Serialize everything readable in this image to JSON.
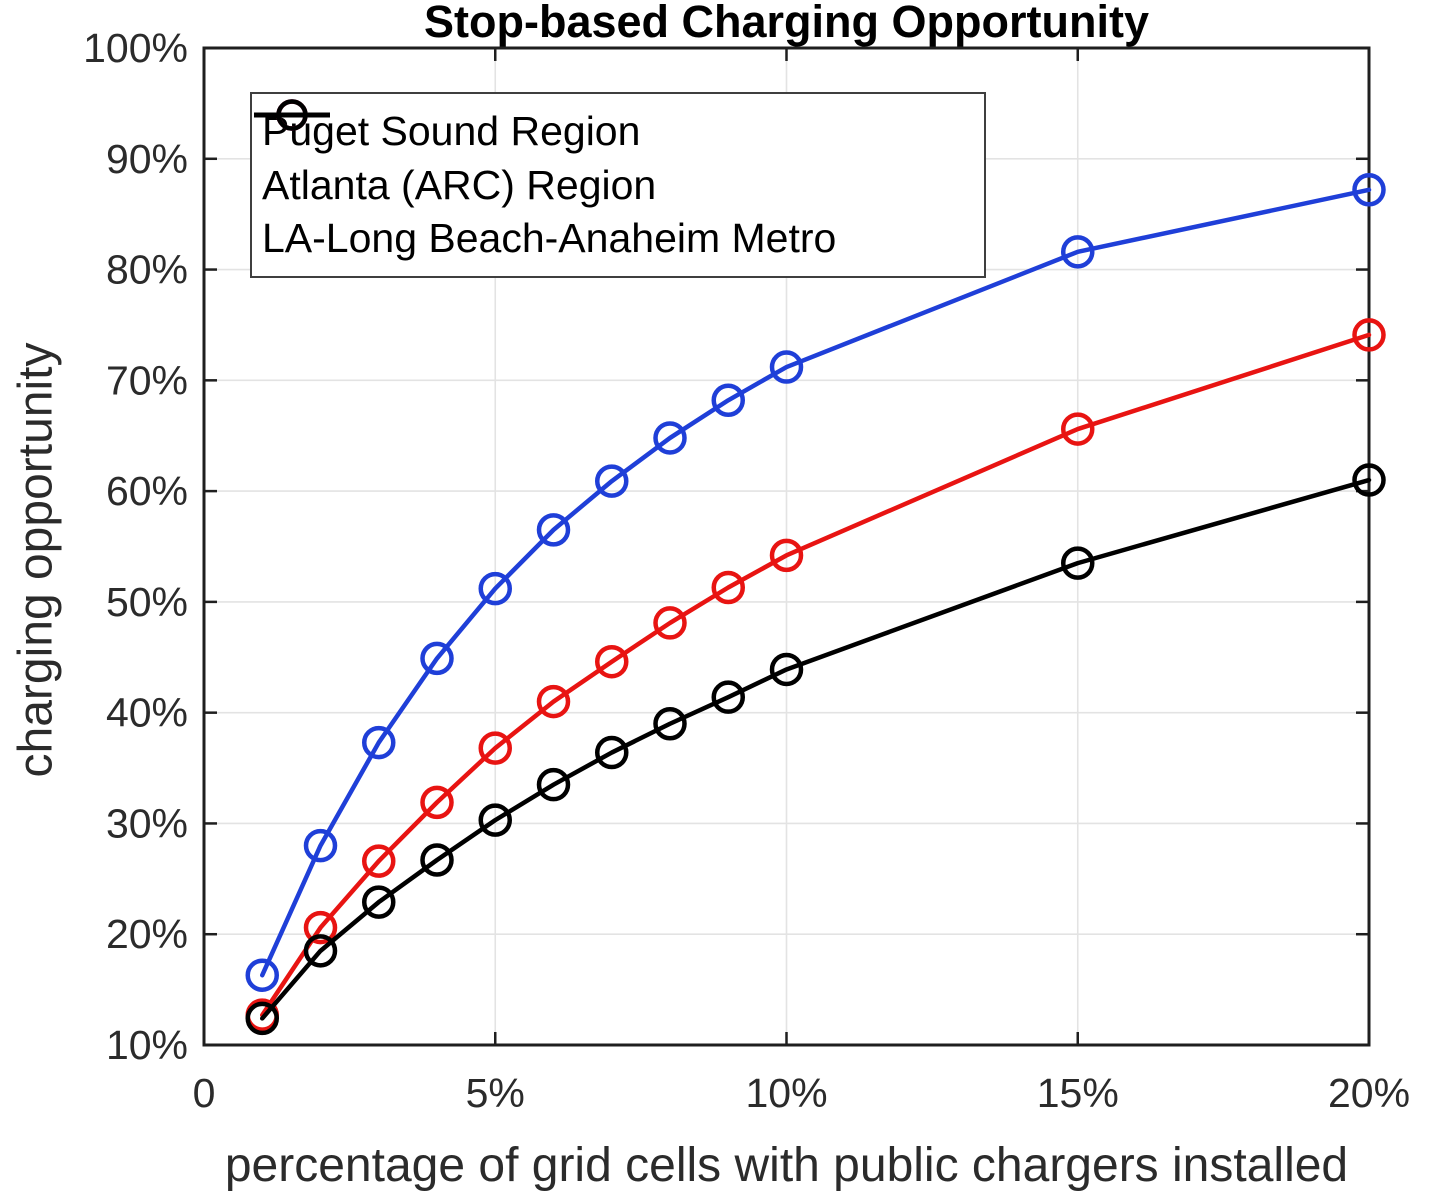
{
  "chart_data": {
    "type": "line",
    "title": "Stop-based Charging Opportunity",
    "xlabel": "percentage of grid cells with public chargers installed",
    "ylabel": "charging opportunity",
    "x": [
      1,
      2,
      3,
      4,
      5,
      6,
      7,
      8,
      9,
      10,
      15,
      20
    ],
    "series": [
      {
        "name": "Puget Sound Region",
        "color": "#1f3fd8",
        "values": [
          16.3,
          28.0,
          37.3,
          44.9,
          51.2,
          56.5,
          60.9,
          64.8,
          68.2,
          71.2,
          81.6,
          87.2
        ]
      },
      {
        "name": "Atlanta (ARC) Region",
        "color": "#e81412",
        "values": [
          12.7,
          20.6,
          26.6,
          31.9,
          36.8,
          41.0,
          44.6,
          48.1,
          51.3,
          54.2,
          65.6,
          74.1
        ]
      },
      {
        "name": "LA-Long Beach-Anaheim Metro",
        "color": "#000000",
        "values": [
          12.4,
          18.5,
          22.9,
          26.7,
          30.3,
          33.5,
          36.4,
          39.0,
          41.4,
          43.9,
          53.5,
          61.0
        ]
      }
    ],
    "xlim": [
      0,
      20
    ],
    "ylim": [
      10,
      100
    ],
    "x_ticks": [
      {
        "v": 0,
        "label": "0"
      },
      {
        "v": 5,
        "label": "5%"
      },
      {
        "v": 10,
        "label": "10%"
      },
      {
        "v": 15,
        "label": "15%"
      },
      {
        "v": 20,
        "label": "20%"
      }
    ],
    "y_ticks": [
      {
        "v": 10,
        "label": "10%"
      },
      {
        "v": 20,
        "label": "20%"
      },
      {
        "v": 30,
        "label": "30%"
      },
      {
        "v": 40,
        "label": "40%"
      },
      {
        "v": 50,
        "label": "50%"
      },
      {
        "v": 60,
        "label": "60%"
      },
      {
        "v": 70,
        "label": "70%"
      },
      {
        "v": 80,
        "label": "80%"
      },
      {
        "v": 90,
        "label": "90%"
      },
      {
        "v": 100,
        "label": "100%"
      }
    ],
    "grid": true,
    "legend_position": "top-left",
    "marker": "open-circle"
  },
  "colors": {
    "axis": "#1f1f1f",
    "grid": "#e3e3e3",
    "tick_label": "#2b2b2b",
    "background": "#ffffff"
  }
}
